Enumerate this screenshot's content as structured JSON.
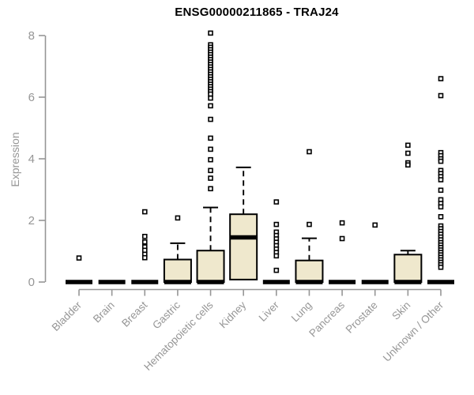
{
  "chart_data": {
    "type": "boxplot",
    "title": "ENSG00000211865 - TRAJ24",
    "xlabel": "",
    "ylabel": "Expression",
    "ylim": [
      0,
      8
    ],
    "yticks": [
      0,
      2,
      4,
      6,
      8
    ],
    "grid": false,
    "legend": "none",
    "categories": [
      "Bladder",
      "Brain",
      "Breast",
      "Gastric",
      "Hematopoietic cells",
      "Kidney",
      "Liver",
      "Lung",
      "Pancreas",
      "Prostate",
      "Skin",
      "Unknown / Other"
    ],
    "boxes": [
      {
        "label": "Bladder",
        "q1": 0,
        "median": 0,
        "q3": 0,
        "whisker_low": 0,
        "whisker_high": 0,
        "outliers": [
          0.78
        ]
      },
      {
        "label": "Brain",
        "q1": 0,
        "median": 0,
        "q3": 0,
        "whisker_low": 0,
        "whisker_high": 0,
        "outliers": []
      },
      {
        "label": "Breast",
        "q1": 0,
        "median": 0,
        "q3": 0,
        "whisker_low": 0,
        "whisker_high": 0,
        "outliers": [
          2.28,
          1.48,
          1.3,
          1.14,
          1.03,
          0.9,
          0.79
        ]
      },
      {
        "label": "Gastric",
        "q1": 0,
        "median": 0,
        "q3": 0.73,
        "whisker_low": 0,
        "whisker_high": 1.26,
        "outliers": [
          2.08
        ]
      },
      {
        "label": "Hematopoietic cells",
        "q1": 0,
        "median": 0,
        "q3": 1.02,
        "whisker_low": 0,
        "whisker_high": 2.42,
        "outliers": [
          8.08,
          7.7,
          7.62,
          7.54,
          7.46,
          7.38,
          7.3,
          7.22,
          7.14,
          7.06,
          6.98,
          6.9,
          6.82,
          6.74,
          6.66,
          6.58,
          6.5,
          6.42,
          6.34,
          6.26,
          6.18,
          6.1,
          5.97,
          5.72,
          5.28,
          4.67,
          4.31,
          3.97,
          3.62,
          3.37,
          3.03
        ]
      },
      {
        "label": "Kidney",
        "q1": 0.08,
        "median": 1.45,
        "q3": 2.2,
        "whisker_low": 0.08,
        "whisker_high": 3.72,
        "outliers": []
      },
      {
        "label": "Liver",
        "q1": 0,
        "median": 0,
        "q3": 0,
        "whisker_low": 0,
        "whisker_high": 0,
        "outliers": [
          2.6,
          1.87,
          1.62,
          1.51,
          1.4,
          1.29,
          1.18,
          1.07,
          0.96,
          0.85,
          0.38
        ]
      },
      {
        "label": "Lung",
        "q1": 0,
        "median": 0,
        "q3": 0.7,
        "whisker_low": 0,
        "whisker_high": 1.42,
        "outliers": [
          4.23,
          1.87
        ]
      },
      {
        "label": "Pancreas",
        "q1": 0,
        "median": 0,
        "q3": 0,
        "whisker_low": 0,
        "whisker_high": 0,
        "outliers": [
          1.92,
          1.41
        ]
      },
      {
        "label": "Prostate",
        "q1": 0,
        "median": 0,
        "q3": 0,
        "whisker_low": 0,
        "whisker_high": 0,
        "outliers": [
          1.85
        ]
      },
      {
        "label": "Skin",
        "q1": 0,
        "median": 0,
        "q3": 0.89,
        "whisker_low": 0,
        "whisker_high": 1.02,
        "outliers": [
          4.44,
          4.18,
          3.87,
          3.8
        ]
      },
      {
        "label": "Unknown / Other",
        "q1": 0,
        "median": 0,
        "q3": 0,
        "whisker_low": 0,
        "whisker_high": 0,
        "outliers": [
          6.6,
          6.05,
          4.2,
          4.1,
          4.0,
          3.92,
          3.62,
          3.52,
          3.42,
          3.32,
          2.98,
          2.67,
          2.55,
          2.44,
          2.12,
          1.82,
          1.73,
          1.64,
          1.55,
          1.46,
          1.37,
          1.28,
          1.2,
          1.12,
          1.04,
          0.96,
          0.88,
          0.8,
          0.72,
          0.64,
          0.56,
          0.48
        ]
      }
    ],
    "colors": {
      "box_fill": "#EFE8CD",
      "box_border": "#000000",
      "median": "#000000",
      "whisker": "#000000",
      "outlier_stroke": "#000000",
      "axis": "#969696",
      "title": "#000000",
      "background": "#FFFFFF"
    }
  }
}
